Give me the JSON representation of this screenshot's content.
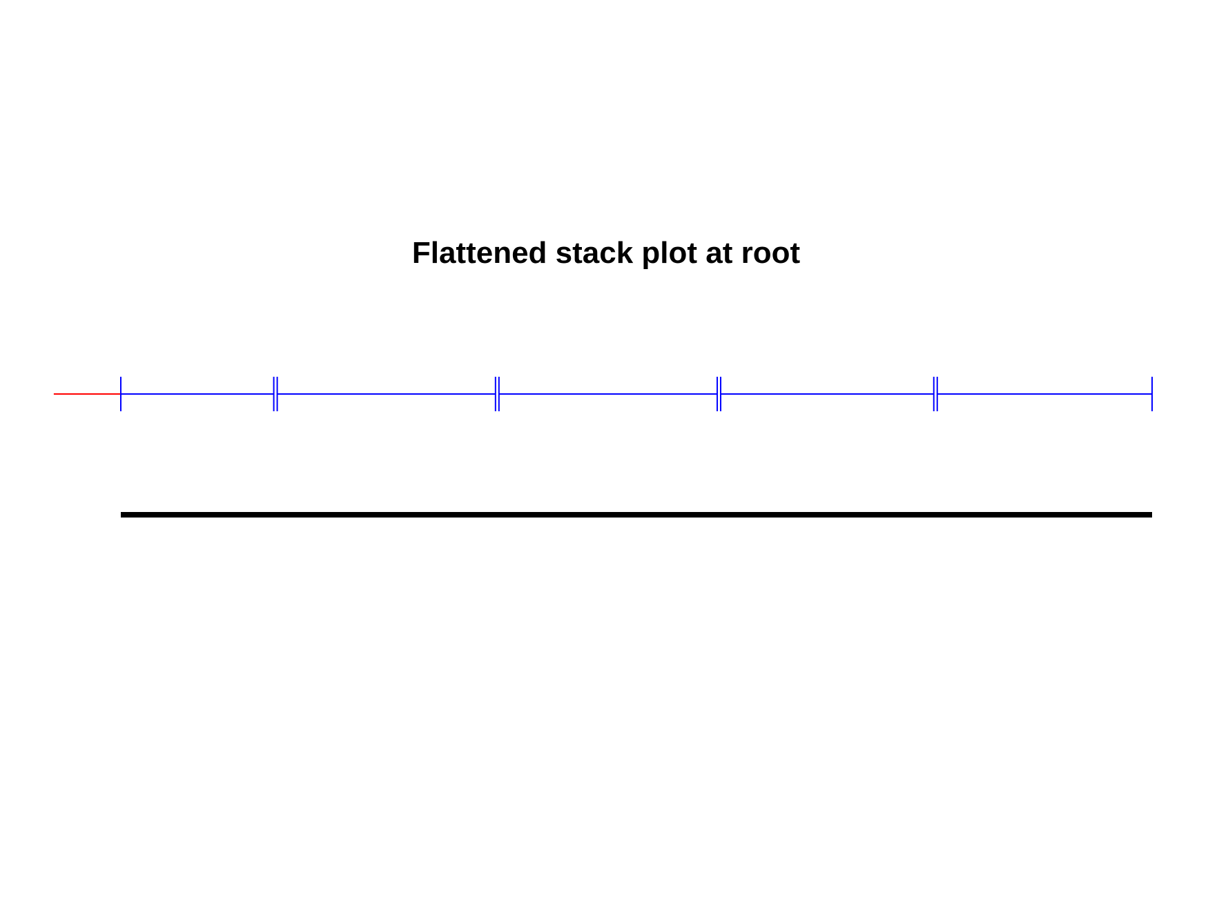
{
  "title": "Flattened stack plot at root",
  "colors": {
    "root_edge": "#ff0000",
    "segments": "#0000ff",
    "baseline": "#000000",
    "title": "#000000"
  },
  "segments": [
    {
      "from": 0.0,
      "to": 0.15
    },
    {
      "from": 0.15,
      "to": 0.365
    },
    {
      "from": 0.365,
      "to": 0.58
    },
    {
      "from": 0.58,
      "to": 0.79
    },
    {
      "from": 0.79,
      "to": 1.0
    }
  ],
  "root_edge_length": 0.065
}
